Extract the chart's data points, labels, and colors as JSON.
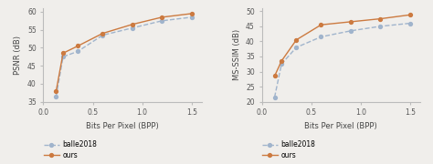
{
  "psnr": {
    "balle2018": {
      "bpp": [
        0.13,
        0.2,
        0.35,
        0.6,
        0.9,
        1.2,
        1.5
      ],
      "vals": [
        36.5,
        47.5,
        49.0,
        53.5,
        55.5,
        57.5,
        58.5
      ]
    },
    "ours": {
      "bpp": [
        0.13,
        0.2,
        0.35,
        0.6,
        0.9,
        1.2,
        1.5
      ],
      "vals": [
        38.0,
        48.5,
        50.5,
        54.0,
        56.5,
        58.5,
        59.5
      ]
    },
    "ylabel": "PSNR (dB)",
    "xlabel": "Bits Per Pixel (BPP)",
    "ylim": [
      35,
      61
    ],
    "yticks": [
      35,
      40,
      45,
      50,
      55,
      60
    ],
    "xlim": [
      0.05,
      1.6
    ],
    "xticks": [
      0,
      0.5,
      1.0,
      1.5
    ]
  },
  "msssim": {
    "balle2018": {
      "bpp": [
        0.13,
        0.2,
        0.35,
        0.6,
        0.9,
        1.2,
        1.5
      ],
      "vals": [
        21.5,
        32.5,
        38.0,
        41.5,
        43.5,
        45.0,
        46.0
      ]
    },
    "ours": {
      "bpp": [
        0.13,
        0.2,
        0.35,
        0.6,
        0.9,
        1.2,
        1.5
      ],
      "vals": [
        28.5,
        33.5,
        40.5,
        45.5,
        46.5,
        47.5,
        48.8
      ]
    },
    "ylabel": "MS-SSIM (dB)",
    "xlabel": "Bits Per Pixel (BPP)",
    "ylim": [
      20,
      51
    ],
    "yticks": [
      20,
      25,
      30,
      35,
      40,
      45,
      50
    ],
    "xlim": [
      0.05,
      1.6
    ],
    "xticks": [
      0,
      0.5,
      1.0,
      1.5
    ]
  },
  "balle2018_color": "#a0b4cc",
  "balle2018_linestyle": "--",
  "ours_color": "#cc7a40",
  "ours_linestyle": "-",
  "marker": "o",
  "markersize": 2.8,
  "linewidth": 1.0,
  "bg_color": "#f0eeeb",
  "fontsize": 6.0,
  "tick_fontsize": 5.5
}
